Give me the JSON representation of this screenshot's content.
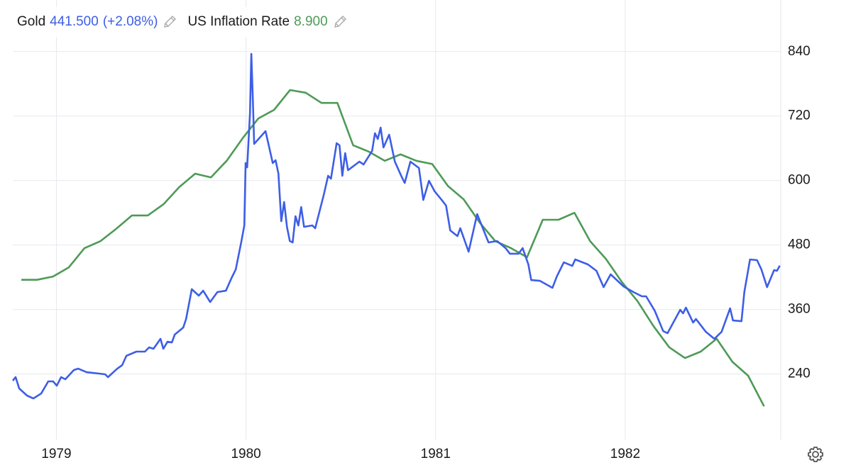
{
  "chart_data": {
    "type": "line",
    "xlim": [
      1978.77,
      1982.82
    ],
    "xticks": [
      1979,
      1980,
      1981,
      1982
    ],
    "ylim": [
      118,
      936
    ],
    "yticks": [
      240,
      360,
      480,
      600,
      720,
      840
    ],
    "y2lim": [
      8.28,
      16.48
    ],
    "grid": true,
    "series": [
      {
        "name": "US Inflation Rate",
        "color": "#4e9a57",
        "axis": "y2",
        "last_label": "8.900",
        "x": [
          1978.815,
          1978.898,
          1978.982,
          1979.065,
          1979.148,
          1979.232,
          1979.315,
          1979.398,
          1979.482,
          1979.565,
          1979.648,
          1979.732,
          1979.815,
          1979.898,
          1979.982,
          1980.065,
          1980.148,
          1980.232,
          1980.315,
          1980.398,
          1980.482,
          1980.565,
          1980.648,
          1980.732,
          1980.815,
          1980.898,
          1980.982,
          1981.065,
          1981.148,
          1981.232,
          1981.315,
          1981.398,
          1981.482,
          1981.565,
          1981.648,
          1981.732,
          1981.815,
          1981.898,
          1981.982,
          1982.065,
          1982.148,
          1982.232,
          1982.315,
          1982.398,
          1982.482,
          1982.565,
          1982.648,
          1982.732
        ],
        "values": [
          11.26,
          11.26,
          11.32,
          11.49,
          11.85,
          11.98,
          12.21,
          12.46,
          12.46,
          12.67,
          12.99,
          13.24,
          13.17,
          13.48,
          13.9,
          14.27,
          14.43,
          14.8,
          14.75,
          14.56,
          14.56,
          13.77,
          13.65,
          13.48,
          13.6,
          13.48,
          13.42,
          13.01,
          12.76,
          12.33,
          11.98,
          11.85,
          11.68,
          12.38,
          12.38,
          12.51,
          11.98,
          11.65,
          11.22,
          10.86,
          10.4,
          10.0,
          9.8,
          9.92,
          10.16,
          9.73,
          9.47,
          8.9
        ]
      },
      {
        "name": "Gold",
        "color": "#3d5ee6",
        "last_label": "441.500",
        "change_label": "(+2.08%)",
        "x": [
          1978.77,
          1978.785,
          1978.804,
          1978.845,
          1978.879,
          1978.92,
          1978.957,
          1978.983,
          1979.002,
          1979.025,
          1979.047,
          1979.092,
          1979.115,
          1979.16,
          1979.257,
          1979.272,
          1979.321,
          1979.347,
          1979.369,
          1979.422,
          1979.467,
          1979.489,
          1979.512,
          1979.549,
          1979.564,
          1979.586,
          1979.609,
          1979.624,
          1979.669,
          1979.684,
          1979.714,
          1979.751,
          1979.774,
          1979.811,
          1979.849,
          1979.894,
          1979.924,
          1979.946,
          1979.976,
          1979.991,
          1979.998,
          1980.006,
          1980.021,
          1980.028,
          1980.036,
          1980.043,
          1980.103,
          1980.141,
          1980.156,
          1980.171,
          1980.186,
          1980.201,
          1980.216,
          1980.231,
          1980.246,
          1980.261,
          1980.276,
          1980.291,
          1980.306,
          1980.35,
          1980.365,
          1980.41,
          1980.433,
          1980.448,
          1980.478,
          1980.493,
          1980.508,
          1980.523,
          1980.538,
          1980.598,
          1980.62,
          1980.665,
          1980.68,
          1980.695,
          1980.71,
          1980.725,
          1980.755,
          1980.785,
          1980.822,
          1980.837,
          1980.867,
          1980.912,
          1980.935,
          1980.965,
          1980.995,
          1981.032,
          1981.055,
          1981.077,
          1981.115,
          1981.13,
          1981.174,
          1981.219,
          1981.279,
          1981.324,
          1981.369,
          1981.392,
          1981.437,
          1981.459,
          1981.489,
          1981.504,
          1981.549,
          1981.616,
          1981.639,
          1981.676,
          1981.721,
          1981.736,
          1981.803,
          1981.848,
          1981.886,
          1981.923,
          1981.991,
          1982.043,
          1982.088,
          1982.11,
          1982.155,
          1982.2,
          1982.223,
          1982.29,
          1982.305,
          1982.32,
          1982.358,
          1982.373,
          1982.425,
          1982.47,
          1982.508,
          1982.553,
          1982.568,
          1982.613,
          1982.628,
          1982.658,
          1982.695,
          1982.718,
          1982.748,
          1982.785,
          1982.8,
          1982.815
        ],
        "values": [
          227.5,
          234.1,
          213.0,
          199.8,
          194.5,
          203.7,
          226.2,
          226.2,
          218.2,
          234.1,
          230.1,
          247.3,
          249.9,
          243.3,
          239.4,
          234.1,
          249.9,
          256.5,
          273.7,
          281.6,
          281.6,
          289.5,
          286.9,
          305.3,
          286.9,
          300.0,
          298.7,
          313.2,
          326.4,
          342.3,
          397.7,
          385.8,
          395.0,
          373.9,
          392.4,
          395.0,
          418.8,
          434.6,
          487.4,
          516.4,
          632.5,
          624.6,
          724.9,
          835.7,
          751.3,
          668.2,
          691.9,
          632.5,
          637.8,
          612.7,
          524.3,
          560.0,
          513.8,
          487.4,
          484.8,
          533.6,
          516.4,
          550.7,
          513.8,
          516.4,
          511.2,
          573.2,
          608.8,
          603.5,
          669.5,
          665.5,
          608.8,
          651.0,
          619.3,
          635.2,
          629.9,
          655.0,
          688.0,
          677.4,
          698.5,
          661.6,
          685.3,
          635.2,
          606.1,
          595.6,
          635.2,
          623.3,
          563.9,
          599.6,
          579.8,
          563.9,
          553.4,
          507.2,
          496.6,
          511.2,
          467.6,
          537.5,
          484.8,
          487.4,
          474.2,
          463.7,
          463.7,
          474.2,
          443.9,
          414.8,
          413.5,
          400.3,
          421.4,
          447.8,
          441.2,
          453.1,
          443.9,
          432.0,
          401.6,
          425.4,
          403.0,
          392.4,
          384.5,
          384.5,
          358.1,
          319.8,
          315.9,
          359.4,
          352.8,
          363.4,
          335.7,
          342.3,
          318.5,
          305.3,
          318.5,
          362.1,
          339.6,
          338.3,
          392.4,
          453.1,
          451.8,
          434.6,
          401.6,
          433.3,
          432.0,
          441.5
        ]
      }
    ]
  }
}
